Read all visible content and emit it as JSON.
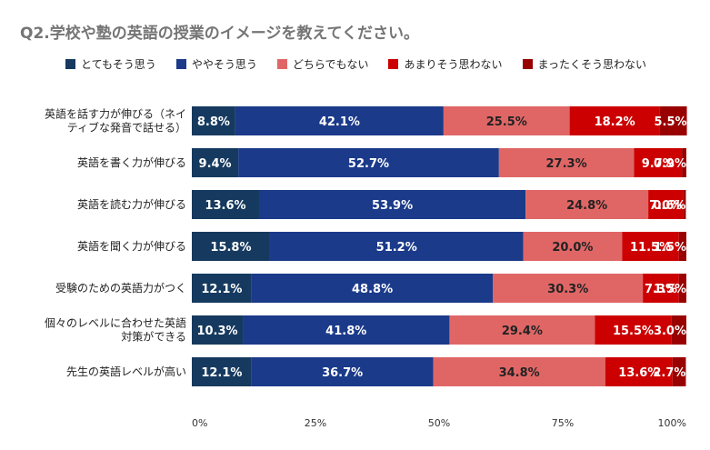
{
  "chart_data": {
    "type": "bar",
    "orientation": "horizontal",
    "stacked": true,
    "title": "Q2.学校や塾の英語の授業のイメージを教えてください。",
    "legend_position": "top",
    "categories": [
      [
        "英語を話す力が伸びる（ネイ",
        "ティブな発音で話せる）"
      ],
      [
        "英語を書く力が伸びる"
      ],
      [
        "英語を読む力が伸びる"
      ],
      [
        "英語を聞く力が伸びる"
      ],
      [
        "受験のための英語力がつく"
      ],
      [
        "個々のレベルに合わせた英語",
        "対策ができる"
      ],
      [
        "先生の英語レベルが高い"
      ]
    ],
    "series": [
      {
        "name": "とてもそう思う",
        "color": "#163a5f",
        "values": [
          8.8,
          9.4,
          13.6,
          15.8,
          12.1,
          10.3,
          12.1
        ]
      },
      {
        "name": "ややそう思う",
        "color": "#1b3a8a",
        "values": [
          42.1,
          52.7,
          53.9,
          51.2,
          48.8,
          41.8,
          36.7
        ]
      },
      {
        "name": "どちらでもない",
        "color": "#e06666",
        "values": [
          25.5,
          27.3,
          24.8,
          20.0,
          30.3,
          29.4,
          34.8
        ]
      },
      {
        "name": "あまりそう思わない",
        "color": "#cc0000",
        "values": [
          18.2,
          9.7,
          7.0,
          11.5,
          7.3,
          15.5,
          13.6
        ]
      },
      {
        "name": "まったくそう思わない",
        "color": "#990000",
        "values": [
          5.5,
          0.9,
          0.6,
          1.5,
          1.5,
          3.0,
          2.7
        ]
      }
    ],
    "x_ticks": [
      "0%",
      "25%",
      "50%",
      "75%",
      "100%"
    ],
    "xlim": [
      0,
      100
    ],
    "value_format": "percent_1dp",
    "grid": false
  }
}
